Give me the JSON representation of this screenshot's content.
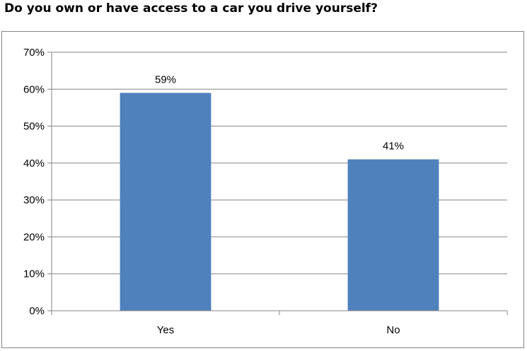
{
  "title": "Do you own or have access to a car you drive yourself?",
  "chart_data": {
    "type": "bar",
    "categories": [
      "Yes",
      "No"
    ],
    "values": [
      59,
      41
    ],
    "data_labels": [
      "59%",
      "41%"
    ],
    "ylim": [
      0,
      70
    ],
    "yticks": [
      0,
      10,
      20,
      30,
      40,
      50,
      60,
      70
    ],
    "ytick_labels": [
      "0%",
      "10%",
      "20%",
      "30%",
      "40%",
      "50%",
      "60%",
      "70%"
    ],
    "grid": true,
    "legend": "none",
    "bar_color": "#4F81BD",
    "grid_color": "#868686"
  }
}
